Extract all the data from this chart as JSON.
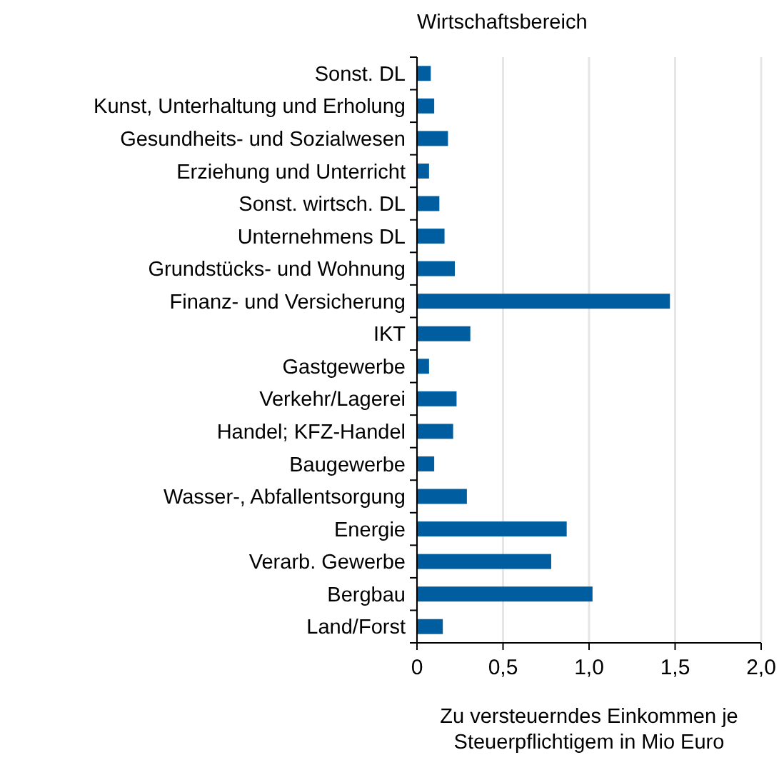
{
  "chart_data": {
    "type": "bar",
    "orientation": "horizontal",
    "ylabel": "Wirtschaftsbereich",
    "xlabel": "Zu versteuerndes Einkommen je Steuerpflichtigem in Mio Euro",
    "categories": [
      "Sonst. DL",
      "Kunst, Unterhaltung und Erholung",
      "Gesundheits- und Sozialwesen",
      "Erziehung und Unterricht",
      "Sonst. wirtsch. DL",
      "Unternehmens DL ",
      "Grundstücks- und Wohnung",
      "Finanz- und Versicherung",
      "IKT",
      "Gastgewerbe",
      "Verkehr/Lagerei",
      "Handel; KFZ-Handel",
      "Baugewerbe",
      "Wasser-, Abfallentsorgung",
      "Energie",
      "Verarb. Gewerbe",
      "Bergbau",
      "Land/Forst"
    ],
    "values": [
      0.08,
      0.1,
      0.18,
      0.07,
      0.13,
      0.16,
      0.22,
      1.47,
      0.31,
      0.07,
      0.23,
      0.21,
      0.1,
      0.29,
      0.87,
      0.78,
      1.02,
      0.15
    ],
    "color": "#005ea0",
    "xlim": [
      0,
      2
    ],
    "xticks": [
      0,
      {
        "value": 0.5,
        "label": "0,5"
      },
      {
        "value": 1,
        "label": "1,0"
      },
      {
        "value": 1.5,
        "label": "1,5"
      },
      {
        "value": 2,
        "label": "2,0"
      }
    ],
    "grid": "x"
  }
}
